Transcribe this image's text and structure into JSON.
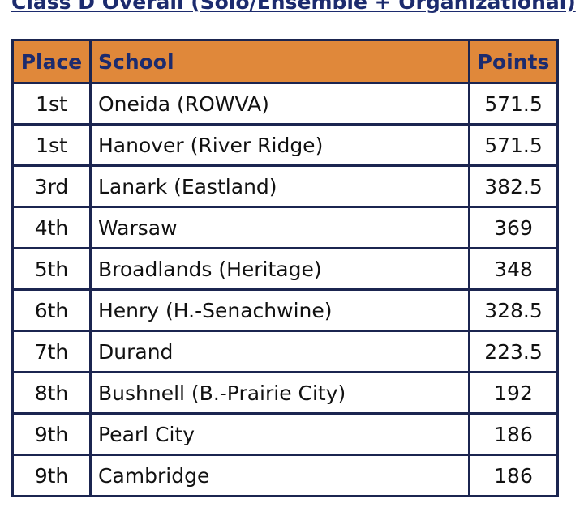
{
  "title": "Class D Overall (Solo/Ensemble + Organizational)",
  "table": {
    "header": [
      "Place",
      "School",
      "Points"
    ],
    "rows": [
      [
        "1st",
        "Oneida (ROWVA)",
        "571.5"
      ],
      [
        "1st",
        "Hanover (River Ridge)",
        "571.5"
      ],
      [
        "3rd",
        "Lanark (Eastland)",
        "382.5"
      ],
      [
        "4th",
        "Warsaw",
        "369"
      ],
      [
        "5th",
        "Broadlands (Heritage)",
        "348"
      ],
      [
        "6th",
        "Henry (H.-Senachwine)",
        "328.5"
      ],
      [
        "7th",
        "Durand",
        "223.5"
      ],
      [
        "8th",
        "Bushnell (B.-Prairie City)",
        "192"
      ],
      [
        "9th",
        "Pearl City",
        "186"
      ],
      [
        "9th",
        "Cambridge",
        "186"
      ]
    ]
  }
}
